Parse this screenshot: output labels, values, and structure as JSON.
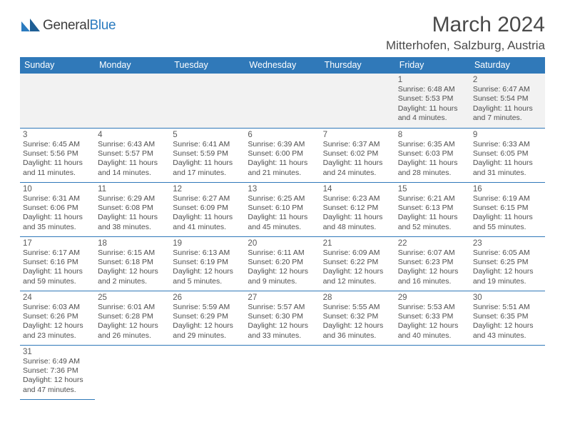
{
  "brand": {
    "name_a": "General",
    "name_b": "Blue"
  },
  "title": "March 2024",
  "location": "Mitterhofen, Salzburg, Austria",
  "colors": {
    "header_bg": "#3079b9",
    "header_fg": "#ffffff",
    "rule": "#3079b9",
    "shade": "#f2f2f2"
  },
  "weekdays": [
    "Sunday",
    "Monday",
    "Tuesday",
    "Wednesday",
    "Thursday",
    "Friday",
    "Saturday"
  ],
  "weeks": [
    [
      null,
      null,
      null,
      null,
      null,
      {
        "n": "1",
        "sr": "Sunrise: 6:48 AM",
        "ss": "Sunset: 5:53 PM",
        "dl": "Daylight: 11 hours and 4 minutes."
      },
      {
        "n": "2",
        "sr": "Sunrise: 6:47 AM",
        "ss": "Sunset: 5:54 PM",
        "dl": "Daylight: 11 hours and 7 minutes."
      }
    ],
    [
      {
        "n": "3",
        "sr": "Sunrise: 6:45 AM",
        "ss": "Sunset: 5:56 PM",
        "dl": "Daylight: 11 hours and 11 minutes."
      },
      {
        "n": "4",
        "sr": "Sunrise: 6:43 AM",
        "ss": "Sunset: 5:57 PM",
        "dl": "Daylight: 11 hours and 14 minutes."
      },
      {
        "n": "5",
        "sr": "Sunrise: 6:41 AM",
        "ss": "Sunset: 5:59 PM",
        "dl": "Daylight: 11 hours and 17 minutes."
      },
      {
        "n": "6",
        "sr": "Sunrise: 6:39 AM",
        "ss": "Sunset: 6:00 PM",
        "dl": "Daylight: 11 hours and 21 minutes."
      },
      {
        "n": "7",
        "sr": "Sunrise: 6:37 AM",
        "ss": "Sunset: 6:02 PM",
        "dl": "Daylight: 11 hours and 24 minutes."
      },
      {
        "n": "8",
        "sr": "Sunrise: 6:35 AM",
        "ss": "Sunset: 6:03 PM",
        "dl": "Daylight: 11 hours and 28 minutes."
      },
      {
        "n": "9",
        "sr": "Sunrise: 6:33 AM",
        "ss": "Sunset: 6:05 PM",
        "dl": "Daylight: 11 hours and 31 minutes."
      }
    ],
    [
      {
        "n": "10",
        "sr": "Sunrise: 6:31 AM",
        "ss": "Sunset: 6:06 PM",
        "dl": "Daylight: 11 hours and 35 minutes."
      },
      {
        "n": "11",
        "sr": "Sunrise: 6:29 AM",
        "ss": "Sunset: 6:08 PM",
        "dl": "Daylight: 11 hours and 38 minutes."
      },
      {
        "n": "12",
        "sr": "Sunrise: 6:27 AM",
        "ss": "Sunset: 6:09 PM",
        "dl": "Daylight: 11 hours and 41 minutes."
      },
      {
        "n": "13",
        "sr": "Sunrise: 6:25 AM",
        "ss": "Sunset: 6:10 PM",
        "dl": "Daylight: 11 hours and 45 minutes."
      },
      {
        "n": "14",
        "sr": "Sunrise: 6:23 AM",
        "ss": "Sunset: 6:12 PM",
        "dl": "Daylight: 11 hours and 48 minutes."
      },
      {
        "n": "15",
        "sr": "Sunrise: 6:21 AM",
        "ss": "Sunset: 6:13 PM",
        "dl": "Daylight: 11 hours and 52 minutes."
      },
      {
        "n": "16",
        "sr": "Sunrise: 6:19 AM",
        "ss": "Sunset: 6:15 PM",
        "dl": "Daylight: 11 hours and 55 minutes."
      }
    ],
    [
      {
        "n": "17",
        "sr": "Sunrise: 6:17 AM",
        "ss": "Sunset: 6:16 PM",
        "dl": "Daylight: 11 hours and 59 minutes."
      },
      {
        "n": "18",
        "sr": "Sunrise: 6:15 AM",
        "ss": "Sunset: 6:18 PM",
        "dl": "Daylight: 12 hours and 2 minutes."
      },
      {
        "n": "19",
        "sr": "Sunrise: 6:13 AM",
        "ss": "Sunset: 6:19 PM",
        "dl": "Daylight: 12 hours and 5 minutes."
      },
      {
        "n": "20",
        "sr": "Sunrise: 6:11 AM",
        "ss": "Sunset: 6:20 PM",
        "dl": "Daylight: 12 hours and 9 minutes."
      },
      {
        "n": "21",
        "sr": "Sunrise: 6:09 AM",
        "ss": "Sunset: 6:22 PM",
        "dl": "Daylight: 12 hours and 12 minutes."
      },
      {
        "n": "22",
        "sr": "Sunrise: 6:07 AM",
        "ss": "Sunset: 6:23 PM",
        "dl": "Daylight: 12 hours and 16 minutes."
      },
      {
        "n": "23",
        "sr": "Sunrise: 6:05 AM",
        "ss": "Sunset: 6:25 PM",
        "dl": "Daylight: 12 hours and 19 minutes."
      }
    ],
    [
      {
        "n": "24",
        "sr": "Sunrise: 6:03 AM",
        "ss": "Sunset: 6:26 PM",
        "dl": "Daylight: 12 hours and 23 minutes."
      },
      {
        "n": "25",
        "sr": "Sunrise: 6:01 AM",
        "ss": "Sunset: 6:28 PM",
        "dl": "Daylight: 12 hours and 26 minutes."
      },
      {
        "n": "26",
        "sr": "Sunrise: 5:59 AM",
        "ss": "Sunset: 6:29 PM",
        "dl": "Daylight: 12 hours and 29 minutes."
      },
      {
        "n": "27",
        "sr": "Sunrise: 5:57 AM",
        "ss": "Sunset: 6:30 PM",
        "dl": "Daylight: 12 hours and 33 minutes."
      },
      {
        "n": "28",
        "sr": "Sunrise: 5:55 AM",
        "ss": "Sunset: 6:32 PM",
        "dl": "Daylight: 12 hours and 36 minutes."
      },
      {
        "n": "29",
        "sr": "Sunrise: 5:53 AM",
        "ss": "Sunset: 6:33 PM",
        "dl": "Daylight: 12 hours and 40 minutes."
      },
      {
        "n": "30",
        "sr": "Sunrise: 5:51 AM",
        "ss": "Sunset: 6:35 PM",
        "dl": "Daylight: 12 hours and 43 minutes."
      }
    ],
    [
      {
        "n": "31",
        "sr": "Sunrise: 6:49 AM",
        "ss": "Sunset: 7:36 PM",
        "dl": "Daylight: 12 hours and 47 minutes."
      },
      null,
      null,
      null,
      null,
      null,
      null
    ]
  ]
}
